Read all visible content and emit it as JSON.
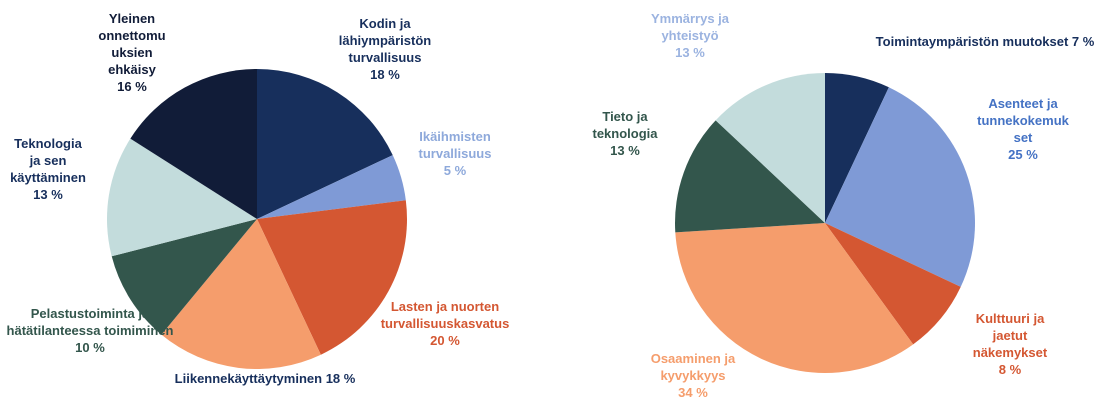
{
  "chart_data": [
    {
      "type": "pie",
      "categories": [
        "Kodin ja lähiympäristön turvallisuus",
        "Ikäihmisten turvallisuus",
        "Lasten ja nuorten turvallisuuskasvatus",
        "Liikennekäyttäytyminen",
        "Pelastustoiminta ja hätätilanteessa toimiminen",
        "Teknologia ja sen käyttäminen",
        "Yleinen onnettomuuksien ehkäisy"
      ],
      "values": [
        18,
        5,
        20,
        18,
        10,
        13,
        16
      ],
      "value_labels": [
        "18 %",
        "5 %",
        "20 %",
        "18 %",
        "10 %",
        "13 %",
        "16 %"
      ],
      "colors": [
        "#172f5c",
        "#7f9ad6",
        "#d45732",
        "#f59d6c",
        "#33564c",
        "#c3dcdc",
        "#111c38"
      ]
    },
    {
      "type": "pie",
      "categories": [
        "Toimintaympäristön muutokset",
        "Asenteet ja tunnekokemukset",
        "Kulttuuri ja jaetut näkemykset",
        "Osaaminen ja kyvykkyys",
        "Tieto ja teknologia",
        "Ymmärrys ja yhteistyö"
      ],
      "values": [
        7,
        25,
        8,
        34,
        13,
        13
      ],
      "value_labels": [
        "7 %",
        "25 %",
        "8 %",
        "34 %",
        "13 %",
        "13 %"
      ],
      "colors": [
        "#172f5c",
        "#7f9ad6",
        "#d45732",
        "#f59d6c",
        "#33564c",
        "#c3dcdc"
      ]
    }
  ]
}
